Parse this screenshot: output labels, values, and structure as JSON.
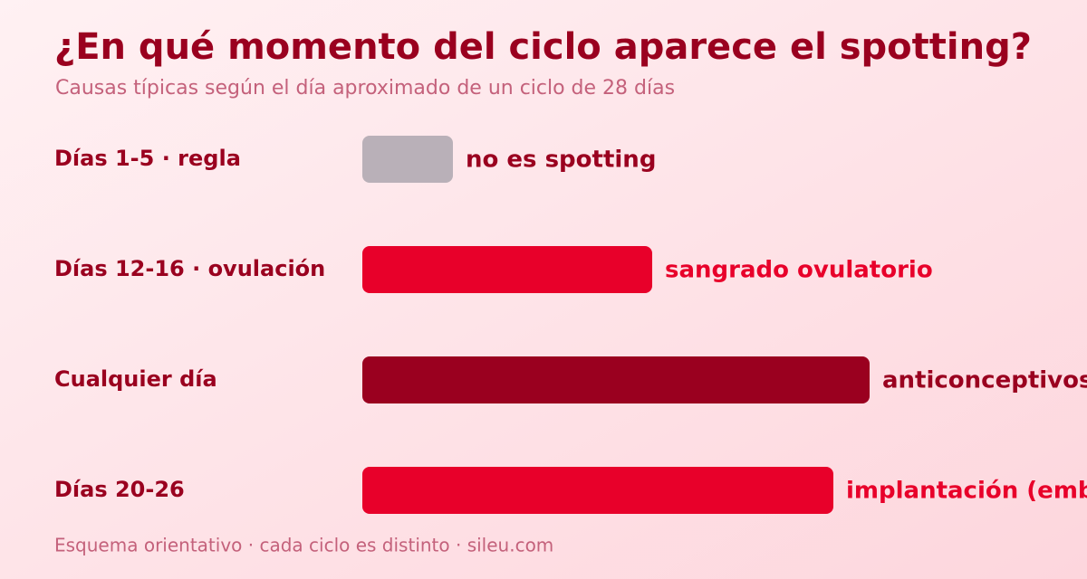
{
  "chart_data": {
    "type": "bar",
    "orientation": "horizontal",
    "title": "¿En qué momento del ciclo aparece el spotting?",
    "subtitle": "Causas típicas según el día aproximado de un ciclo de 28 días",
    "footer": "Esquema orientativo · cada ciclo es distinto · sileu.com",
    "categories": [
      "Días 1-5 · regla",
      "Días 12-16 · ovulación",
      "Cualquier día",
      "Días 20-26"
    ],
    "values": [
      5,
      16,
      28,
      26
    ],
    "value_labels": [
      "no es spotting",
      "sangrado ovulatorio",
      "anticonceptivos,",
      "implantación (emba"
    ],
    "colors": [
      "#b9b0b8",
      "#e8002a",
      "#9a001f",
      "#e8002a"
    ],
    "label_colors": [
      "#9a001f",
      "#e8002a",
      "#9a001f",
      "#e8002a"
    ],
    "xlim": [
      0,
      28
    ]
  }
}
